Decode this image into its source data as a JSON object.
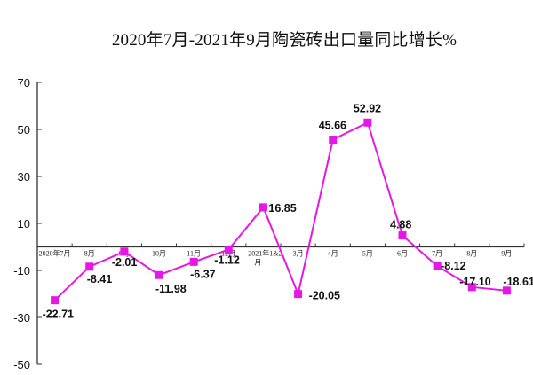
{
  "chart_data": {
    "type": "line",
    "title": "2020年7月-2021年9月陶瓷砖出口量同比增长%",
    "xlabel": "",
    "ylabel": "",
    "ylim": [
      -50,
      70
    ],
    "yticks": [
      70,
      50,
      30,
      10,
      -10,
      -30,
      -50
    ],
    "grid": false,
    "legend": null,
    "categories": [
      "2020年7月",
      "8月",
      "9月",
      "10月",
      "11月",
      "12月",
      "2021年1&2月",
      "3月",
      "4月",
      "5月",
      "6月",
      "7月",
      "8月",
      "9月"
    ],
    "series": [
      {
        "name": "陶瓷砖出口量同比增长%",
        "color": "#e617e6",
        "marker": "square",
        "values": [
          -22.71,
          -8.41,
          -2.01,
          -11.98,
          -6.37,
          -1.12,
          16.85,
          -20.05,
          45.66,
          52.92,
          4.88,
          -8.12,
          -17.1,
          -18.61
        ]
      }
    ],
    "data_labels": [
      "-22.71",
      "-8.41",
      "-2.01",
      "-11.98",
      "-6.37",
      "-1.12",
      "16.85",
      "-20.05",
      "45.66",
      "52.92",
      "4.88",
      "-8.12",
      "-17.10",
      "-18.61"
    ]
  }
}
